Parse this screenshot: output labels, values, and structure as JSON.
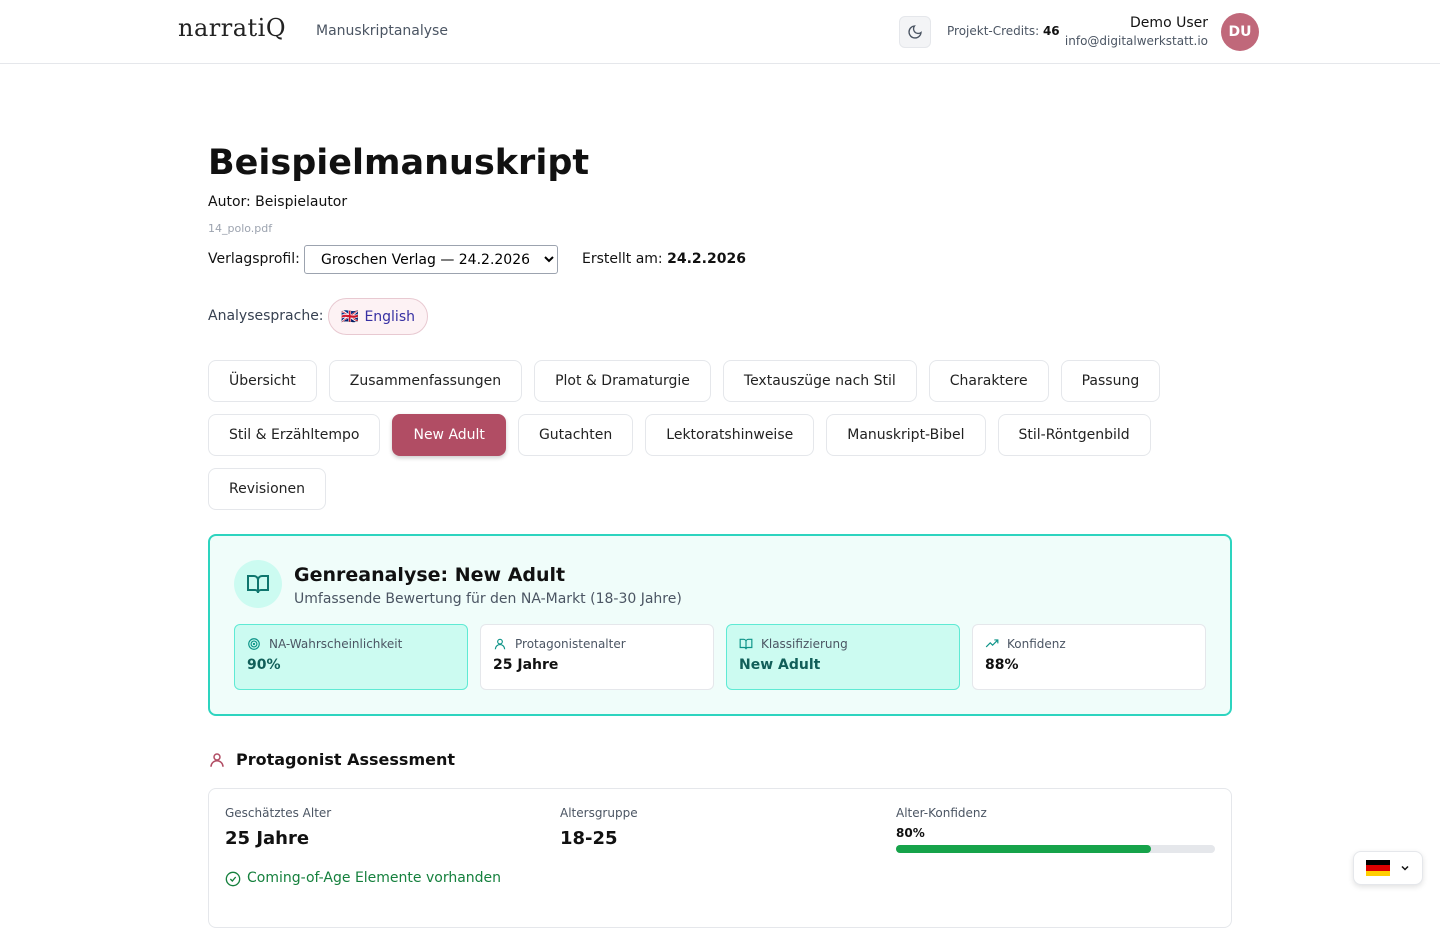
{
  "header": {
    "logo": "narratiQ",
    "section": "Manuskriptanalyse",
    "credits_label": "Projekt-Credits:",
    "credits": 46,
    "user_name": "Demo User",
    "user_email": "info@digitalwerkstatt.io",
    "avatar": "DU"
  },
  "manuscript": {
    "title": "Beispielmanuskript",
    "author": "Autor: Beispielautor",
    "file": "14_polo.pdf",
    "profile_label": "Verlagsprofil:",
    "profile": "Groschen Verlag — 24.2.2026",
    "created_label": "Erstellt am:",
    "created": "24.2.2026",
    "language_label": "Analysesprache:",
    "language_flag": "🇬🇧",
    "language": "English"
  },
  "tabs": [
    "Übersicht",
    "Zusammenfassungen",
    "Plot & Dramaturgie",
    "Textauszüge nach Stil",
    "Charaktere",
    "Passung",
    "Stil & Erzähltempo",
    "New Adult",
    "Gutachten",
    "Lektoratshinweise",
    "Manuskript-Bibel",
    "Stil-Röntgenbild",
    "Revisionen"
  ],
  "active_tab": 7,
  "genre": {
    "title": "Genreanalyse: New Adult",
    "subtitle": "Umfassende Bewertung für den NA-Markt (18-30 Jahre)",
    "stats": [
      {
        "label": "NA-Wahrscheinlichkeit",
        "value": "90%",
        "highlight": true
      },
      {
        "label": "Protagonistenalter",
        "value": "25 Jahre",
        "highlight": false
      },
      {
        "label": "Klassifizierung",
        "value": "New Adult",
        "highlight": true
      },
      {
        "label": "Konfidenz",
        "value": "88%",
        "highlight": false
      }
    ]
  },
  "protagonist": {
    "title": "Protagonist Assessment",
    "age_label": "Geschätztes Alter",
    "age": "25 Jahre",
    "group_label": "Altersgruppe",
    "group": "18-25",
    "confidence_label": "Alter-Konfidenz",
    "confidence": {
      "value": 80,
      "label": "80%"
    },
    "coming_of_age": "Coming-of-Age Elemente vorhanden"
  }
}
